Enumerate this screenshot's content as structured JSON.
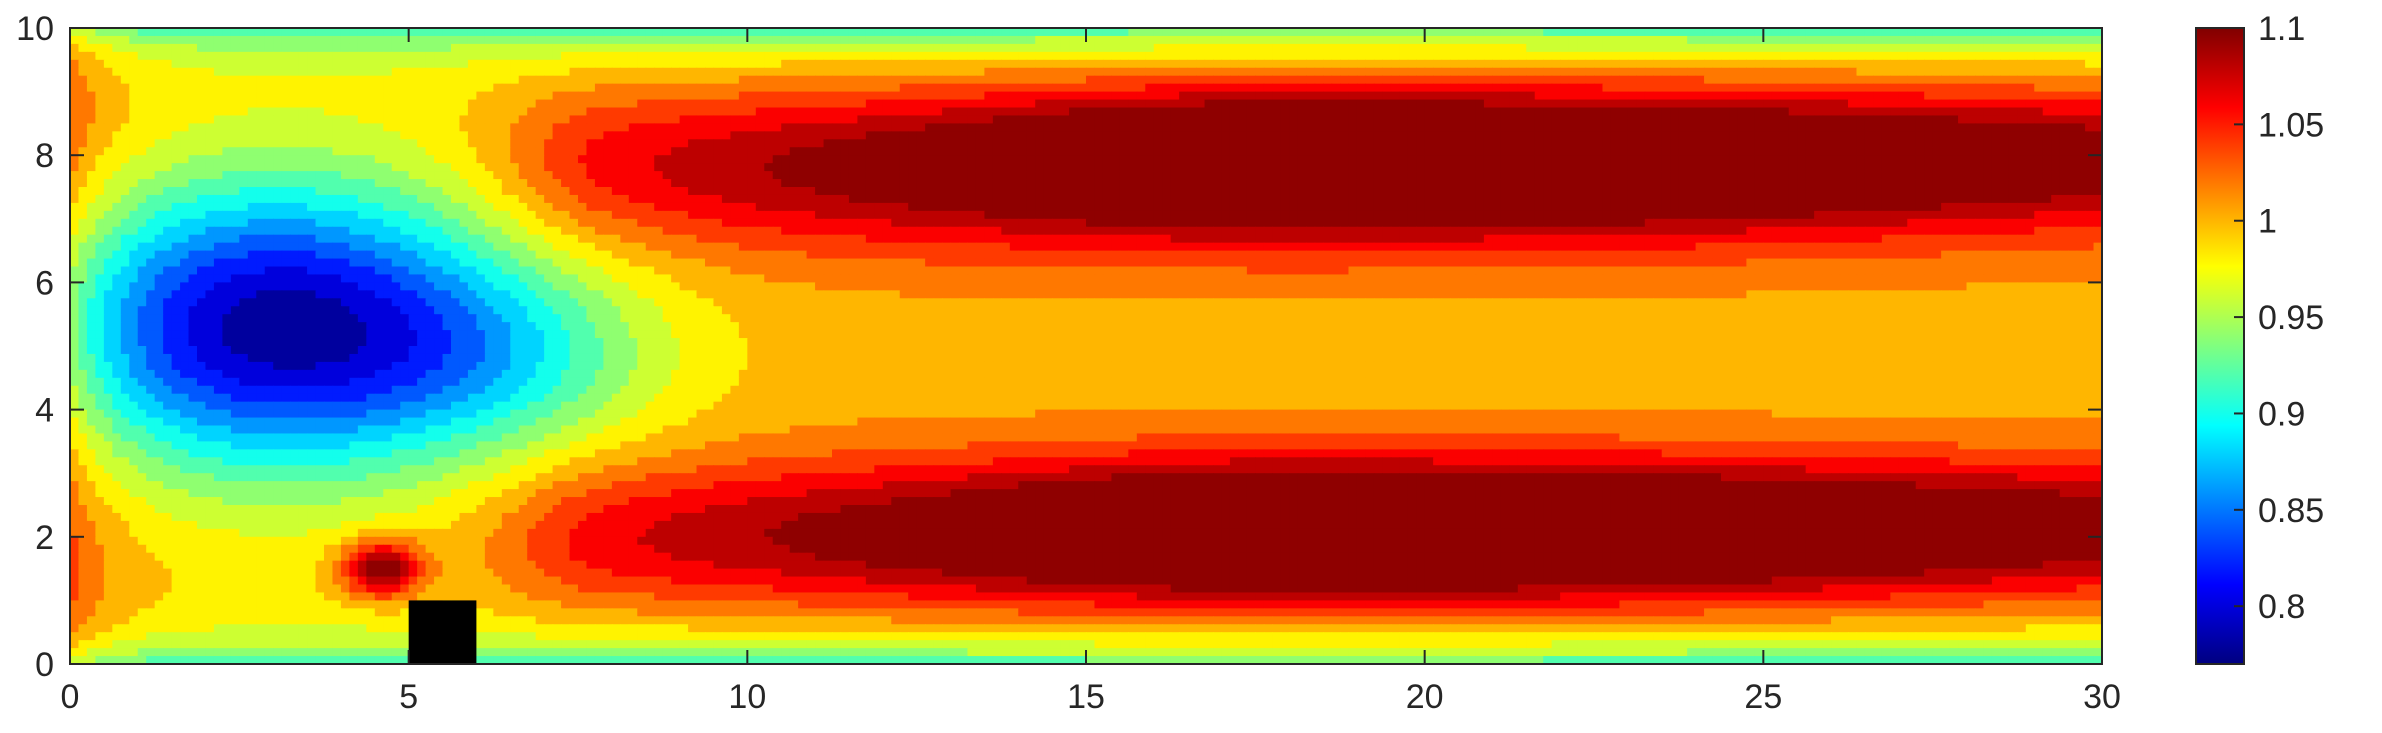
{
  "chart_data": {
    "type": "heatmap",
    "xlim": [
      0,
      30
    ],
    "ylim": [
      0,
      10
    ],
    "x_ticks": [
      0,
      5,
      10,
      15,
      20,
      25,
      30
    ],
    "y_ticks": [
      0,
      2,
      4,
      6,
      8,
      10
    ],
    "x_tick_labels": [
      "0",
      "5",
      "10",
      "15",
      "20",
      "25",
      "30"
    ],
    "y_tick_labels": [
      "0",
      "2",
      "4",
      "6",
      "8",
      "10"
    ],
    "colorbar": {
      "range": [
        0.77,
        1.1
      ],
      "ticks": [
        0.8,
        0.85,
        0.9,
        0.95,
        1.0,
        1.05,
        1.1
      ],
      "tick_labels": [
        "0.8",
        "0.85",
        "0.9",
        "0.95",
        "1",
        "1.05",
        "1.1"
      ],
      "colormap": "jet"
    },
    "levels": [
      0.77,
      0.79,
      0.81,
      0.83,
      0.85,
      0.87,
      0.89,
      0.91,
      0.93,
      0.95,
      0.97,
      0.99,
      1.01,
      1.03,
      1.05,
      1.07,
      1.09
    ],
    "features": [
      {
        "kind": "background",
        "value": 1.0
      },
      {
        "kind": "min",
        "cx": 3.0,
        "cy": 5.3,
        "value": 0.78
      },
      {
        "kind": "max",
        "cx": 4.6,
        "cy": 1.5,
        "value": 1.06
      },
      {
        "kind": "max",
        "cx": 16.0,
        "cy": 7.8,
        "value": 1.1
      },
      {
        "kind": "max",
        "cx": 16.0,
        "cy": 2.0,
        "value": 1.1
      },
      {
        "kind": "plateau",
        "cx": 27.0,
        "cy": 5.0,
        "value": 1.0
      }
    ],
    "obstacle": {
      "x": [
        5.0,
        6.0
      ],
      "y": [
        0.0,
        1.0
      ],
      "color": "#000000"
    },
    "grid": false,
    "legend": "colorbar-right"
  }
}
